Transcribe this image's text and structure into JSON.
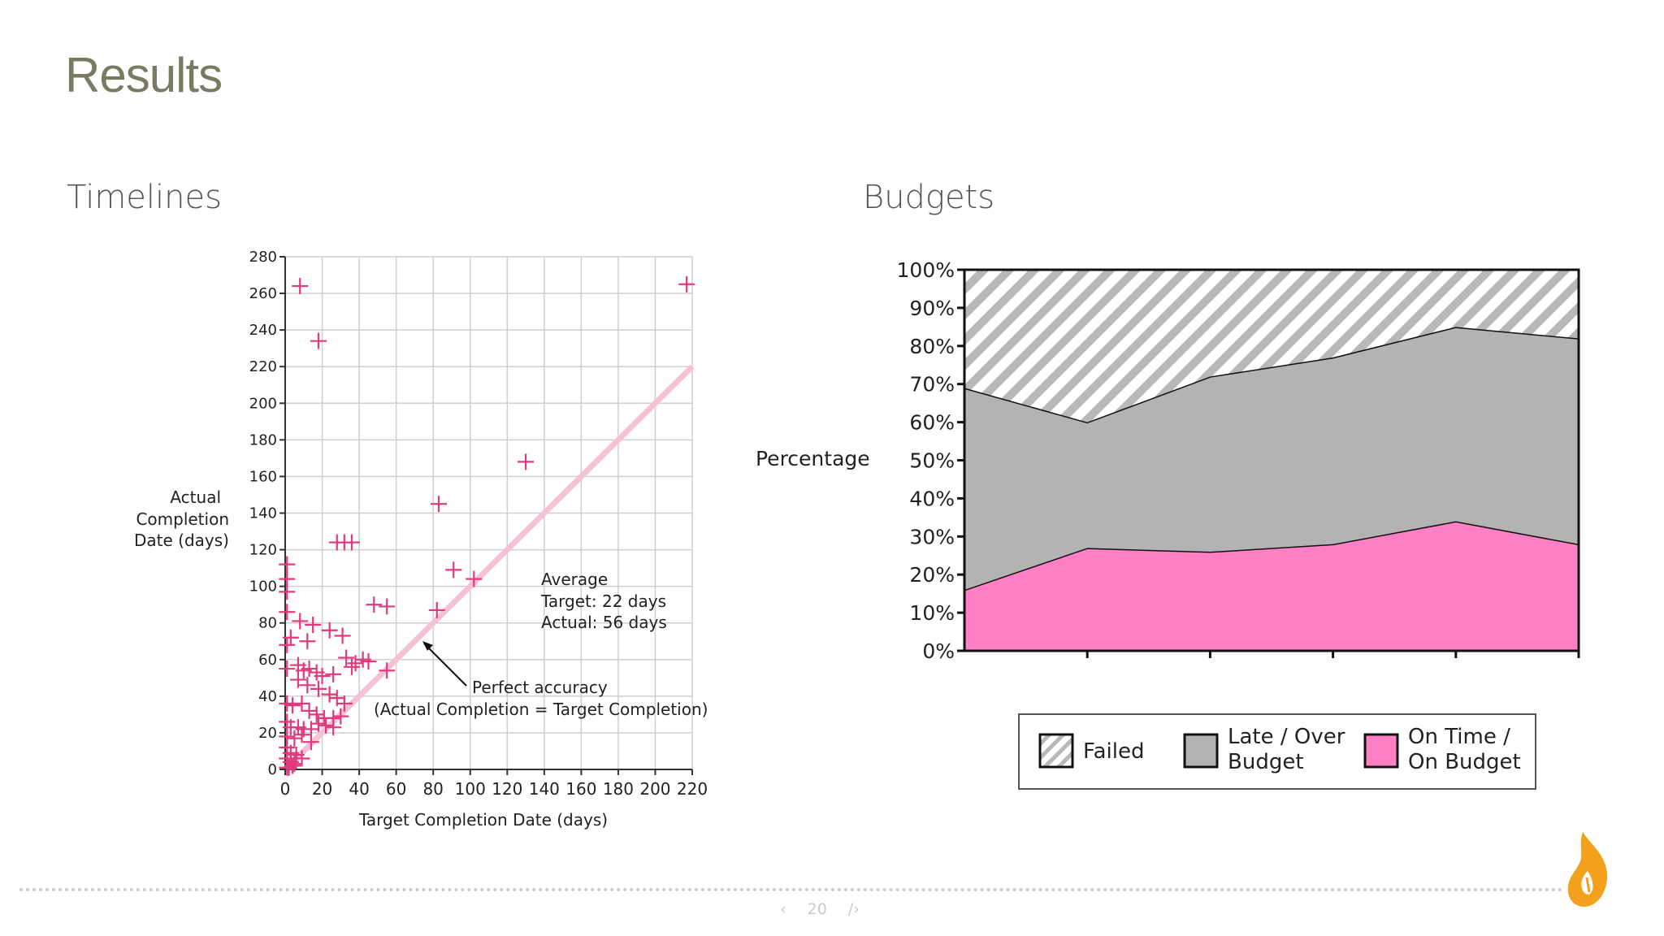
{
  "slide": {
    "title": "Results",
    "left_heading": "Timelines",
    "right_heading": "Budgets",
    "page_number": "20",
    "prev_glyph": "‹",
    "next_glyph": "/›"
  },
  "colors": {
    "title": "#7a7a62",
    "marker": "#e0397e",
    "perfect_line": "#f6c1d6",
    "on_time": "#ff80c5",
    "late": "#b3b3b3",
    "failed_stripe": "#b8b8b8",
    "logo": "#f3a01c"
  },
  "icons": {
    "prev": "chevron-left-icon",
    "next": "chevron-right-icon",
    "logo": "flame-logo-icon"
  },
  "chart_data": [
    {
      "type": "scatter",
      "xlabel": "Target Completion Date (days)",
      "ylabel": "Actual Completion Date (days)",
      "ylabel_lines": [
        "Actual",
        "Completion",
        "Date (days)"
      ],
      "xlim": [
        0,
        220
      ],
      "ylim": [
        0,
        280
      ],
      "xticks": [
        0,
        20,
        40,
        60,
        80,
        100,
        120,
        140,
        160,
        180,
        200,
        220
      ],
      "yticks": [
        0,
        20,
        40,
        60,
        80,
        100,
        120,
        140,
        160,
        180,
        200,
        220,
        240,
        260,
        280
      ],
      "grid": true,
      "reference_line": {
        "from": [
          0,
          0
        ],
        "to": [
          220,
          220
        ]
      },
      "annotations": {
        "average": [
          "Average",
          "Target: 22 days",
          "Actual: 56 days"
        ],
        "perfect": [
          "Perfect accuracy",
          "(Actual Completion = Target Completion)"
        ]
      },
      "points": [
        [
          8,
          264
        ],
        [
          18,
          234
        ],
        [
          217,
          265
        ],
        [
          130,
          168
        ],
        [
          83,
          145
        ],
        [
          91,
          109
        ],
        [
          102,
          104
        ],
        [
          82,
          87
        ],
        [
          48,
          90
        ],
        [
          55,
          89
        ],
        [
          28,
          124
        ],
        [
          32,
          124
        ],
        [
          36,
          124
        ],
        [
          1,
          112
        ],
        [
          1,
          104
        ],
        [
          1,
          97
        ],
        [
          1,
          86
        ],
        [
          3,
          72
        ],
        [
          1,
          68
        ],
        [
          8,
          81
        ],
        [
          15,
          79
        ],
        [
          12,
          70
        ],
        [
          24,
          76
        ],
        [
          31,
          73
        ],
        [
          1,
          55
        ],
        [
          7,
          57
        ],
        [
          10,
          54
        ],
        [
          13,
          55
        ],
        [
          17,
          53
        ],
        [
          20,
          51
        ],
        [
          26,
          52
        ],
        [
          33,
          61
        ],
        [
          36,
          56
        ],
        [
          38,
          58
        ],
        [
          42,
          60
        ],
        [
          45,
          59
        ],
        [
          55,
          54
        ],
        [
          7,
          49
        ],
        [
          12,
          46
        ],
        [
          18,
          44
        ],
        [
          24,
          41
        ],
        [
          28,
          39
        ],
        [
          32,
          36
        ],
        [
          1,
          36
        ],
        [
          4,
          35
        ],
        [
          9,
          36
        ],
        [
          13,
          32
        ],
        [
          17,
          30
        ],
        [
          21,
          28
        ],
        [
          26,
          28
        ],
        [
          30,
          29
        ],
        [
          1,
          26
        ],
        [
          3,
          23
        ],
        [
          7,
          23
        ],
        [
          10,
          22
        ],
        [
          14,
          22
        ],
        [
          18,
          25
        ],
        [
          22,
          24
        ],
        [
          26,
          23
        ],
        [
          1,
          18
        ],
        [
          5,
          17
        ],
        [
          9,
          19
        ],
        [
          14,
          15
        ],
        [
          1,
          12
        ],
        [
          3,
          9
        ],
        [
          6,
          8
        ],
        [
          9,
          6
        ],
        [
          1,
          6
        ],
        [
          3,
          4
        ],
        [
          5,
          3
        ],
        [
          1,
          1
        ],
        [
          2,
          1
        ],
        [
          4,
          2
        ]
      ]
    },
    {
      "type": "area",
      "stacked": true,
      "ylabel": "Percentage",
      "ylim": [
        0,
        100
      ],
      "yticks": [
        "0%",
        "10%",
        "20%",
        "30%",
        "40%",
        "50%",
        "60%",
        "70%",
        "80%",
        "90%",
        "100%"
      ],
      "x": [
        0,
        1,
        2,
        3,
        4,
        5
      ],
      "series": [
        {
          "name": "On Time / On Budget",
          "values": [
            16,
            27,
            26,
            28,
            34,
            28
          ]
        },
        {
          "name": "Late / Over Budget",
          "values": [
            53,
            33,
            46,
            49,
            51,
            54
          ]
        },
        {
          "name": "Failed",
          "values": [
            31,
            40,
            28,
            23,
            15,
            18
          ]
        }
      ],
      "legend": {
        "placement": "bottom",
        "items": [
          {
            "key": "failed",
            "lines": [
              "Failed"
            ]
          },
          {
            "key": "late",
            "lines": [
              "Late / Over",
              "Budget"
            ]
          },
          {
            "key": "on_time",
            "lines": [
              "On Time /",
              "On Budget"
            ]
          }
        ]
      }
    }
  ]
}
